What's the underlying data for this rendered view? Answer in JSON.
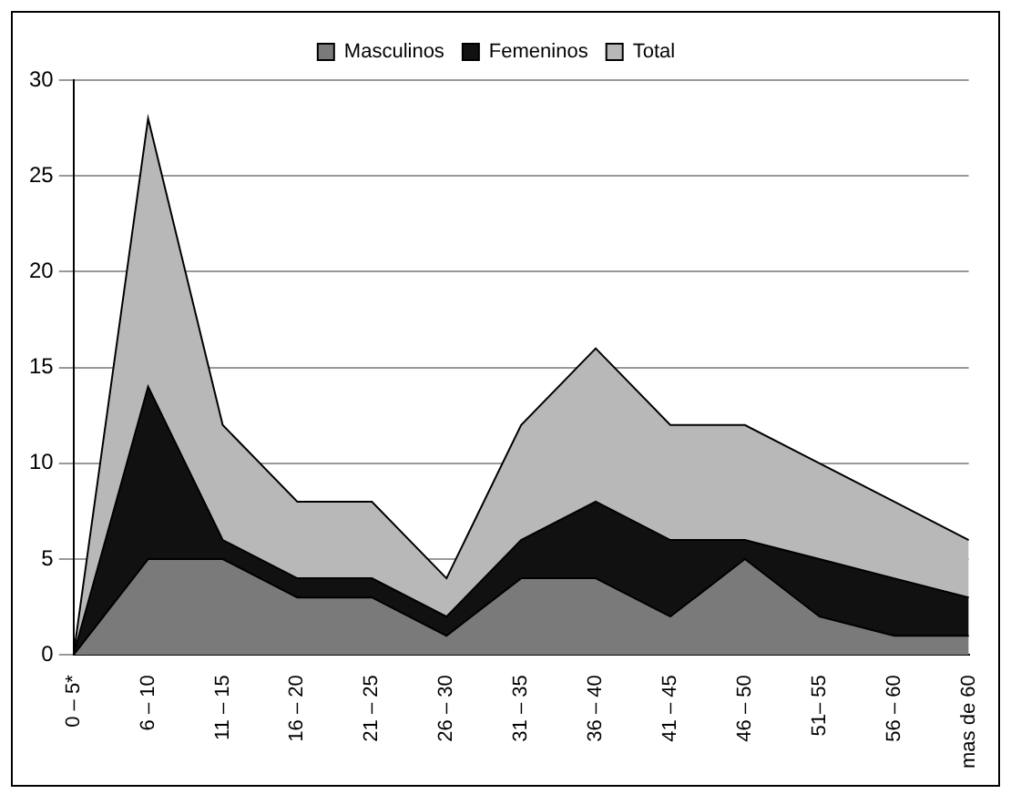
{
  "chart_data": {
    "type": "area",
    "stacked": true,
    "categories": [
      "0 – 5*",
      "6 – 10",
      "11 – 15",
      "16 – 20",
      "21 – 25",
      "26 – 30",
      "31 – 35",
      "36 – 40",
      "41 – 45",
      "46 – 50",
      "51– 55",
      "56 – 60",
      "mas de 60"
    ],
    "series": [
      {
        "name": "Masculinos",
        "color": "#7a7a7a",
        "values": [
          0,
          5,
          5,
          3,
          3,
          1,
          4,
          4,
          2,
          5,
          2,
          1,
          1
        ]
      },
      {
        "name": "Femeninos",
        "color": "#111111",
        "values": [
          0,
          9,
          1,
          1,
          1,
          1,
          2,
          4,
          4,
          1,
          3,
          3,
          2
        ]
      },
      {
        "name": "Total",
        "color": "#b8b8b8",
        "values": [
          0,
          14,
          6,
          4,
          4,
          2,
          6,
          8,
          6,
          6,
          5,
          4,
          3
        ]
      }
    ],
    "ylim": [
      0,
      30
    ],
    "yticks": [
      0,
      5,
      10,
      15,
      20,
      25,
      30
    ],
    "grid": "y",
    "legend": "top"
  }
}
